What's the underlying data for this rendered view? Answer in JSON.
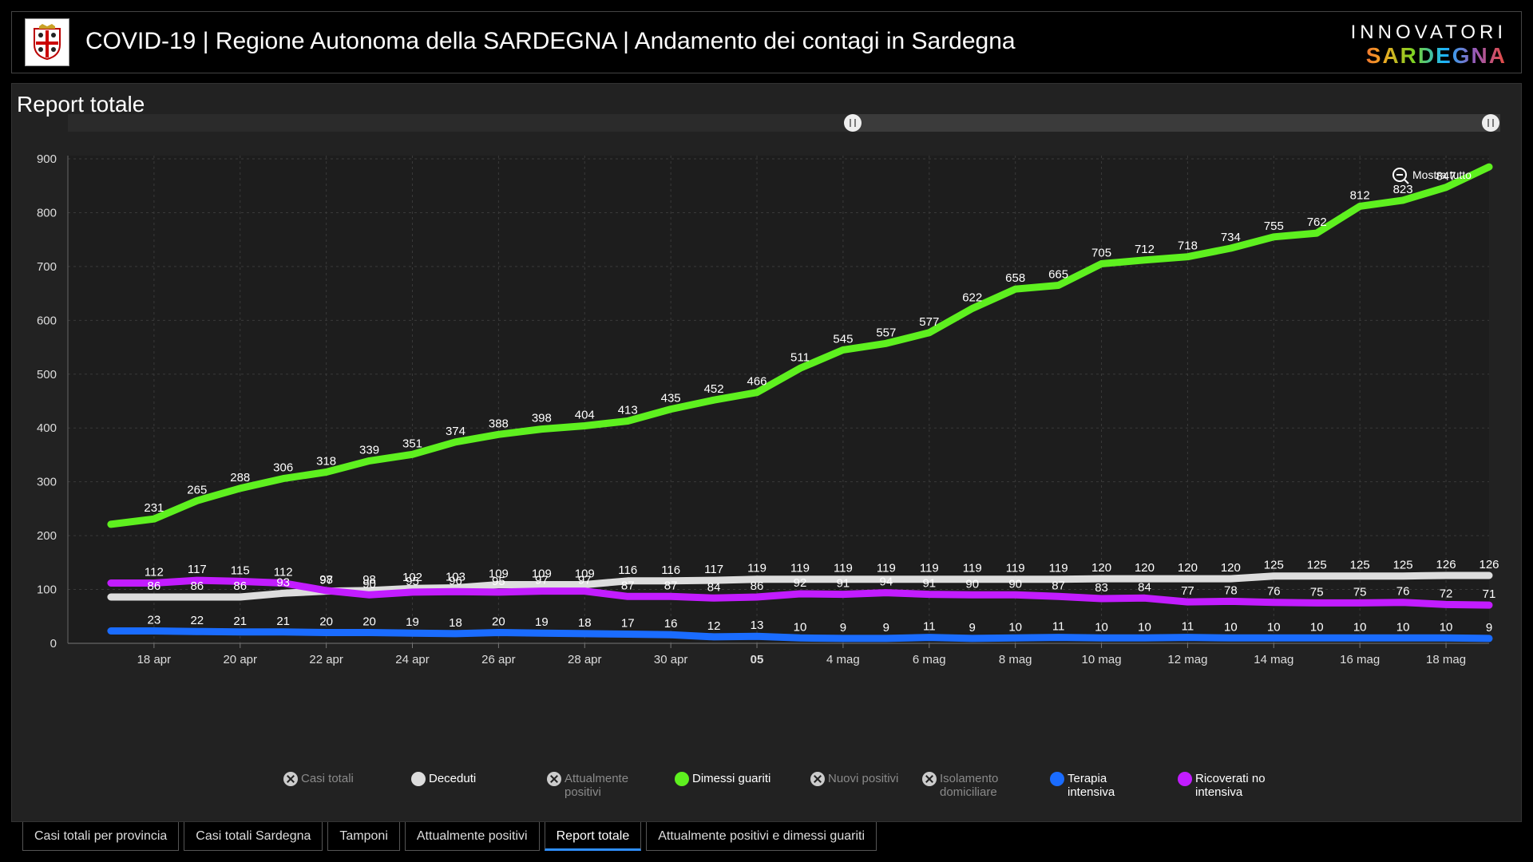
{
  "header": {
    "title": "COVID-19 | Regione Autonoma della SARDEGNA | Andamento dei contagi in Sardegna",
    "brand_top": "INNOVATORI",
    "brand_bottom": "SARDEGNA",
    "logo_icon": "sardinia-coat-of-arms-icon"
  },
  "panel": {
    "title": "Report totale",
    "zoom_button": "Mostra tutto"
  },
  "legend": [
    {
      "label": "Casi totali",
      "color": "#cccccc",
      "enabled": false
    },
    {
      "label": "Deceduti",
      "color": "#dddddd",
      "enabled": true
    },
    {
      "label": "Attualmente positivi",
      "color": "#cccccc",
      "enabled": false
    },
    {
      "label": "Dimessi guariti",
      "color": "#5ef01f",
      "enabled": true
    },
    {
      "label": "Nuovi positivi",
      "color": "#cccccc",
      "enabled": false
    },
    {
      "label": "Isolamento domiciliare",
      "color": "#cccccc",
      "enabled": false
    },
    {
      "label": "Terapia intensiva",
      "color": "#1a6cff",
      "enabled": true
    },
    {
      "label": "Ricoverati no intensiva",
      "color": "#c21cff",
      "enabled": true
    }
  ],
  "tabs": [
    {
      "label": "Casi totali per provincia",
      "active": false
    },
    {
      "label": "Casi totali Sardegna",
      "active": false
    },
    {
      "label": "Tamponi",
      "active": false
    },
    {
      "label": "Attualmente positivi",
      "active": false
    },
    {
      "label": "Report totale",
      "active": true
    },
    {
      "label": "Attualmente positivi e dimessi guariti",
      "active": false
    }
  ],
  "chart_data": {
    "type": "line",
    "ylim": [
      0,
      900
    ],
    "yticks": [
      0,
      100,
      200,
      300,
      400,
      500,
      600,
      700,
      800,
      900
    ],
    "x_tick_labels": [
      {
        "date": "2020-04-18",
        "label": "18 apr"
      },
      {
        "date": "2020-04-20",
        "label": "20 apr"
      },
      {
        "date": "2020-04-22",
        "label": "22 apr"
      },
      {
        "date": "2020-04-24",
        "label": "24 apr"
      },
      {
        "date": "2020-04-26",
        "label": "26 apr"
      },
      {
        "date": "2020-04-28",
        "label": "28 apr"
      },
      {
        "date": "2020-04-30",
        "label": "30 apr"
      },
      {
        "date": "2020-05-02",
        "label": "05"
      },
      {
        "date": "2020-05-04",
        "label": "4 mag"
      },
      {
        "date": "2020-05-06",
        "label": "6 mag"
      },
      {
        "date": "2020-05-08",
        "label": "8 mag"
      },
      {
        "date": "2020-05-10",
        "label": "10 mag"
      },
      {
        "date": "2020-05-12",
        "label": "12 mag"
      },
      {
        "date": "2020-05-14",
        "label": "14 mag"
      },
      {
        "date": "2020-05-16",
        "label": "16 mag"
      },
      {
        "date": "2020-05-18",
        "label": "18 mag"
      }
    ],
    "x": [
      "2020-04-17",
      "2020-04-18",
      "2020-04-19",
      "2020-04-20",
      "2020-04-21",
      "2020-04-22",
      "2020-04-23",
      "2020-04-24",
      "2020-04-25",
      "2020-04-26",
      "2020-04-27",
      "2020-04-28",
      "2020-04-29",
      "2020-04-30",
      "2020-05-01",
      "2020-05-02",
      "2020-05-03",
      "2020-05-04",
      "2020-05-05",
      "2020-05-06",
      "2020-05-07",
      "2020-05-08",
      "2020-05-09",
      "2020-05-10",
      "2020-05-11",
      "2020-05-12",
      "2020-05-13",
      "2020-05-14",
      "2020-05-15",
      "2020-05-16",
      "2020-05-17",
      "2020-05-18",
      "2020-05-19"
    ],
    "series": [
      {
        "name": "Dimessi guariti",
        "color": "#5ef01f",
        "values": [
          221,
          231,
          265,
          288,
          306,
          318,
          339,
          351,
          374,
          388,
          398,
          404,
          413,
          435,
          452,
          466,
          511,
          545,
          557,
          577,
          622,
          658,
          665,
          705,
          712,
          718,
          734,
          755,
          762,
          812,
          823,
          847,
          885
        ],
        "labels": [
          "",
          "231",
          "265",
          "288",
          "306",
          "318",
          "339",
          "351",
          "374",
          "388",
          "398",
          "404",
          "413",
          "435",
          "452",
          "466",
          "511",
          "545",
          "557",
          "577",
          "622",
          "658",
          "665",
          "705",
          "712",
          "718",
          "734",
          "755",
          "762",
          "812",
          "823",
          "847",
          ""
        ]
      },
      {
        "name": "Deceduti",
        "color": "#dddddd",
        "values": [
          86,
          86,
          86,
          86,
          93,
          97,
          98,
          102,
          103,
          109,
          109,
          109,
          116,
          116,
          117,
          119,
          119,
          119,
          119,
          119,
          119,
          119,
          119,
          120,
          120,
          120,
          120,
          125,
          125,
          125,
          125,
          126,
          126
        ],
        "labels": [
          "",
          "86",
          "86",
          "86",
          "93",
          "97",
          "98",
          "102",
          "103",
          "109",
          "109",
          "109",
          "116",
          "116",
          "117",
          "119",
          "119",
          "119",
          "119",
          "119",
          "119",
          "119",
          "119",
          "120",
          "120",
          "120",
          "120",
          "125",
          "125",
          "125",
          "125",
          "126",
          "126"
        ]
      },
      {
        "name": "Ricoverati no intensiva",
        "color": "#c21cff",
        "values": [
          112,
          112,
          117,
          115,
          112,
          98,
          90,
          95,
          96,
          95,
          97,
          97,
          87,
          87,
          84,
          86,
          92,
          91,
          94,
          91,
          90,
          90,
          87,
          83,
          84,
          77,
          78,
          76,
          75,
          75,
          76,
          72,
          71
        ],
        "labels": [
          "",
          "112",
          "117",
          "115",
          "112",
          "98",
          "90",
          "95",
          "96",
          "95",
          "97",
          "97",
          "87",
          "87",
          "84",
          "86",
          "92",
          "91",
          "94",
          "91",
          "90",
          "90",
          "87",
          "83",
          "84",
          "77",
          "78",
          "76",
          "75",
          "75",
          "76",
          "72",
          "71"
        ]
      },
      {
        "name": "Terapia intensiva",
        "color": "#1a6cff",
        "values": [
          23,
          23,
          22,
          21,
          21,
          20,
          20,
          19,
          18,
          20,
          19,
          18,
          17,
          16,
          12,
          13,
          10,
          9,
          9,
          11,
          9,
          10,
          11,
          10,
          10,
          11,
          10,
          10,
          10,
          10,
          10,
          10,
          9
        ],
        "labels": [
          "",
          "23",
          "22",
          "21",
          "21",
          "20",
          "20",
          "19",
          "18",
          "20",
          "19",
          "18",
          "17",
          "16",
          "12",
          "13",
          "10",
          "9",
          "9",
          "11",
          "9",
          "10",
          "11",
          "10",
          "10",
          "11",
          "10",
          "10",
          "10",
          "10",
          "10",
          "10",
          "9"
        ]
      }
    ]
  }
}
